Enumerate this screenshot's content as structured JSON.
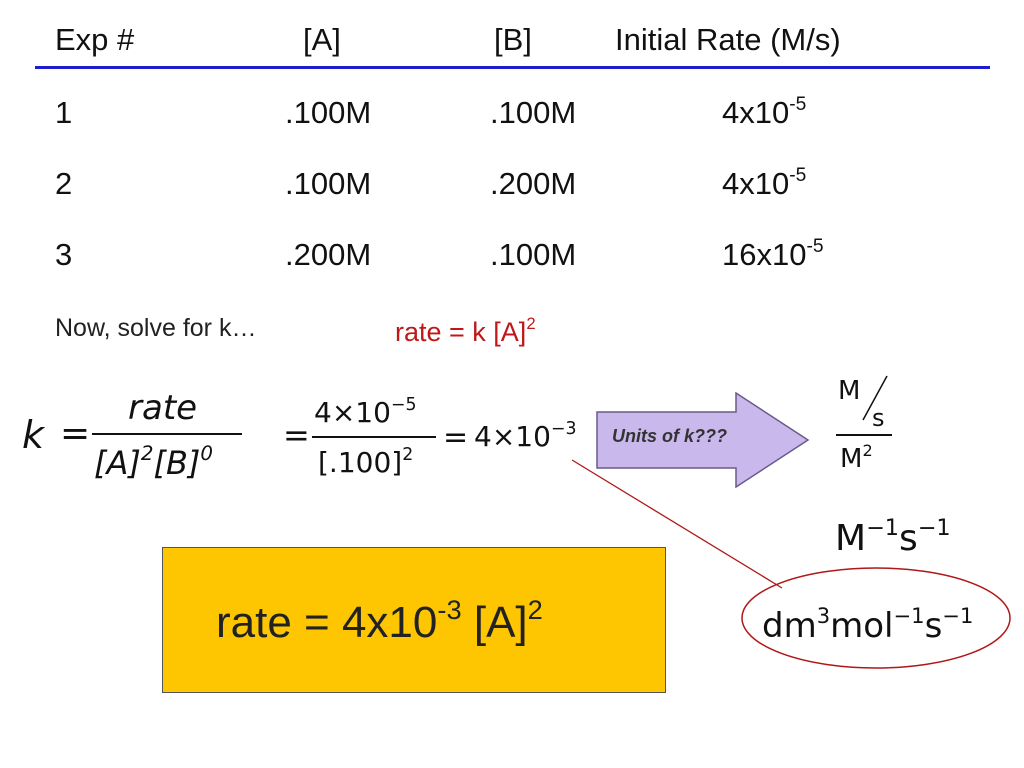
{
  "table": {
    "headers": [
      "Exp #",
      "[A]",
      "[B]",
      "Initial Rate (M/s)"
    ],
    "rows": [
      {
        "exp": "1",
        "a": ".100M",
        "b": ".100M",
        "rate_base": "4x10",
        "rate_exp": "-5"
      },
      {
        "exp": "2",
        "a": ".100M",
        "b": ".200M",
        "rate_base": "4x10",
        "rate_exp": "-5"
      },
      {
        "exp": "3",
        "a": ".200M",
        "b": ".100M",
        "rate_base": "16x10",
        "rate_exp": "-5"
      }
    ]
  },
  "note": "Now, solve for k…",
  "rate_law": {
    "text": "rate = k [A]",
    "exp": "2"
  },
  "equation": {
    "k": "k",
    "equals": "=",
    "num": "rate",
    "den_a": "[A]",
    "den_a_exp": "2",
    "den_b": "[B]",
    "den_b_exp": "0",
    "num2_base": "4×10",
    "num2_exp": "−5",
    "den2": "[.100]",
    "den2_exp": "2",
    "result_base": "4×10",
    "result_exp": "−3"
  },
  "arrow_label": "Units of k???",
  "units_fraction": {
    "top_m": "M",
    "top_s": "s",
    "bottom": "M",
    "bottom_exp": "2"
  },
  "units_ms": {
    "m": "M",
    "m_exp": "−1",
    "s": "s",
    "s_exp": "−1"
  },
  "units_dm": {
    "dm": "dm",
    "dm_exp": "3",
    "mol": "mol",
    "mol_exp": "−1",
    "s": "s",
    "s_exp": "−1"
  },
  "final_rate": {
    "text": "rate = 4x10",
    "exp": "-3",
    "tail": " [A]",
    "tail_exp": "2"
  },
  "colors": {
    "header_line": "#1d1dcf",
    "rate_law_red": "#c01818",
    "arrow_fill": "#c8b8ec",
    "yellow": "#fec600",
    "ellipse": "#c01818"
  }
}
